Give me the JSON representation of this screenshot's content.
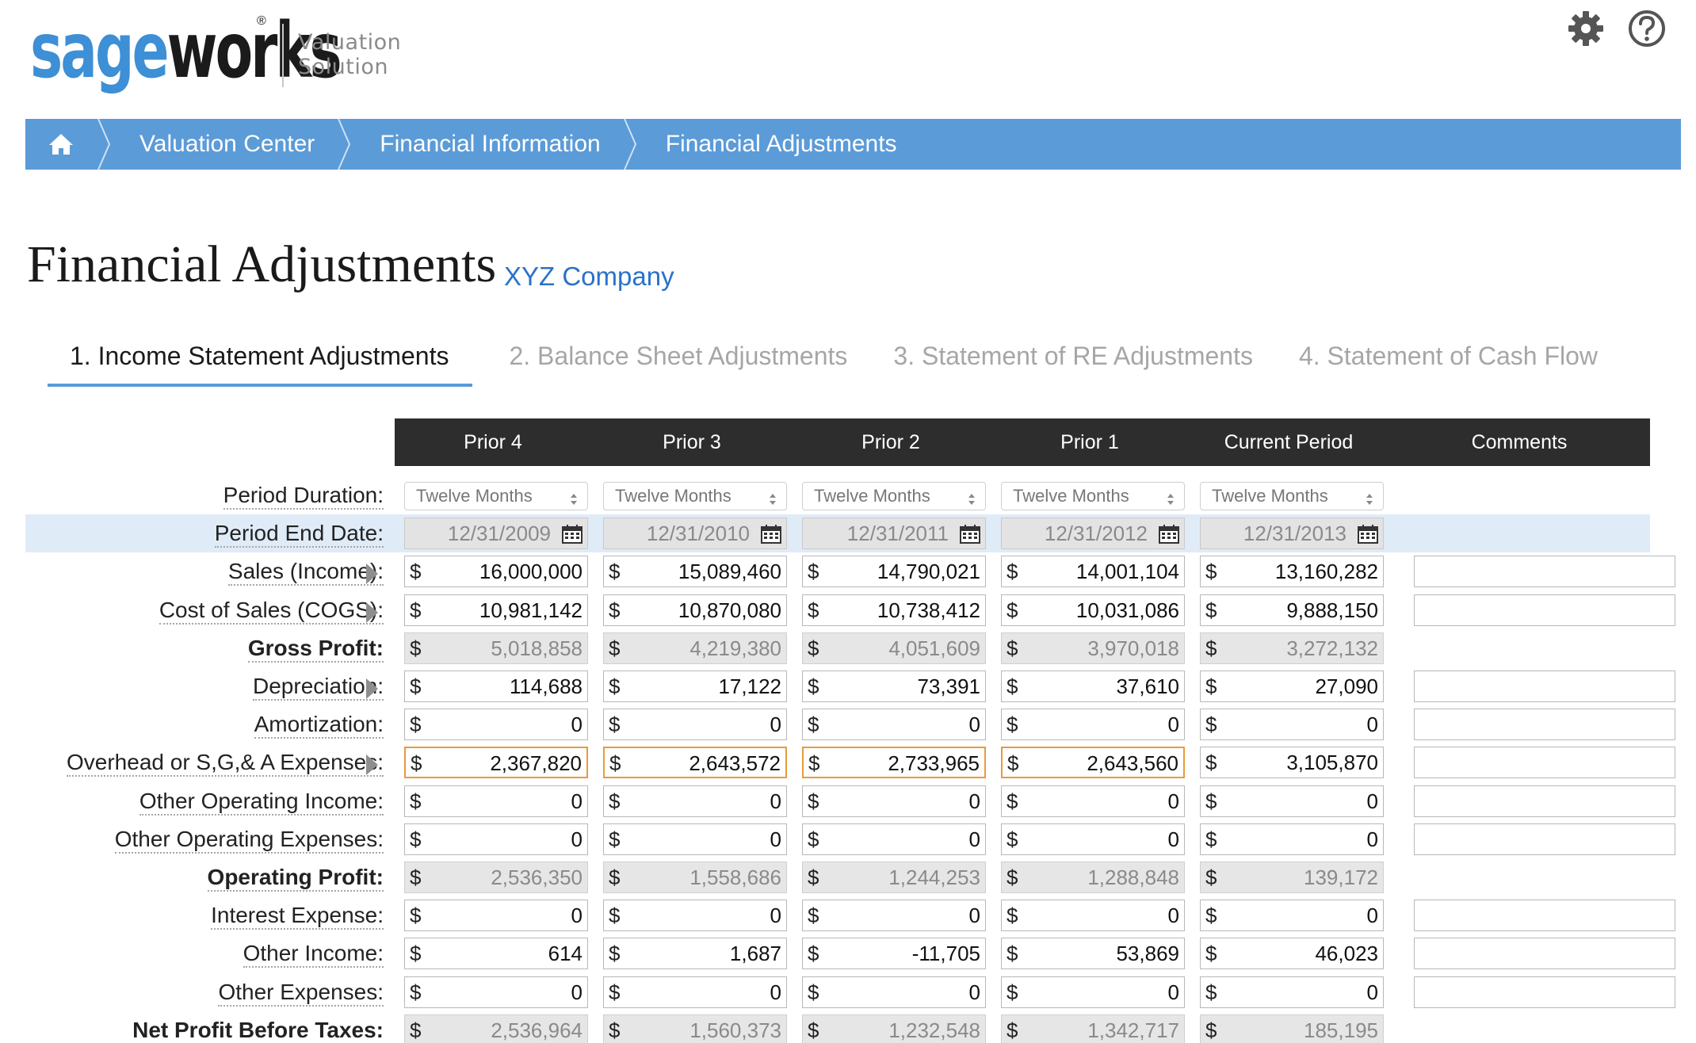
{
  "brand": {
    "sage": "sage",
    "works": "works",
    "reg": "®",
    "sub1": "Valuation",
    "sub2": "Solution"
  },
  "breadcrumb": [
    "Valuation Center",
    "Financial Information",
    "Financial Adjustments"
  ],
  "title": "Financial Adjustments",
  "company": "XYZ Company",
  "tabs": [
    {
      "label": "1. Income Statement Adjustments",
      "active": true
    },
    {
      "label": "2. Balance Sheet Adjustments",
      "active": false
    },
    {
      "label": "3. Statement of RE Adjustments",
      "active": false
    },
    {
      "label": "4. Statement of Cash Flow",
      "active": false
    }
  ],
  "columns": [
    "Prior 4",
    "Prior 3",
    "Prior 2",
    "Prior 1",
    "Current Period",
    "Comments"
  ],
  "currency_symbol": "$",
  "period_duration": {
    "label": "Period Duration:",
    "values": [
      "Twelve Months",
      "Twelve Months",
      "Twelve Months",
      "Twelve Months",
      "Twelve Months"
    ]
  },
  "period_end": {
    "label": "Period End Date:",
    "values": [
      "12/31/2009",
      "12/31/2010",
      "12/31/2011",
      "12/31/2012",
      "12/31/2013"
    ]
  },
  "rows": [
    {
      "label": "Sales (Income):",
      "bold": false,
      "expand": true,
      "readonly": false,
      "values": [
        "16,000,000",
        "15,089,460",
        "14,790,021",
        "14,001,104",
        "13,160,282"
      ]
    },
    {
      "label": "Cost of Sales (COGS):",
      "bold": false,
      "expand": true,
      "readonly": false,
      "values": [
        "10,981,142",
        "10,870,080",
        "10,738,412",
        "10,031,086",
        "9,888,150"
      ]
    },
    {
      "label": "Gross Profit:",
      "bold": true,
      "expand": false,
      "readonly": true,
      "values": [
        "5,018,858",
        "4,219,380",
        "4,051,609",
        "3,970,018",
        "3,272,132"
      ]
    },
    {
      "label": "Depreciation:",
      "bold": false,
      "expand": true,
      "readonly": false,
      "values": [
        "114,688",
        "17,122",
        "73,391",
        "37,610",
        "27,090"
      ]
    },
    {
      "label": "Amortization:",
      "bold": false,
      "expand": false,
      "readonly": false,
      "values": [
        "0",
        "0",
        "0",
        "0",
        "0"
      ]
    },
    {
      "label": "Overhead or S,G,& A Expenses:",
      "bold": false,
      "expand": true,
      "readonly": false,
      "highlight": true,
      "values": [
        "2,367,820",
        "2,643,572",
        "2,733,965",
        "2,643,560",
        "3,105,870"
      ]
    },
    {
      "label": "Other Operating Income:",
      "bold": false,
      "expand": false,
      "readonly": false,
      "values": [
        "0",
        "0",
        "0",
        "0",
        "0"
      ]
    },
    {
      "label": "Other Operating Expenses:",
      "bold": false,
      "expand": false,
      "readonly": false,
      "values": [
        "0",
        "0",
        "0",
        "0",
        "0"
      ]
    },
    {
      "label": "Operating Profit:",
      "bold": true,
      "expand": false,
      "readonly": true,
      "values": [
        "2,536,350",
        "1,558,686",
        "1,244,253",
        "1,288,848",
        "139,172"
      ]
    },
    {
      "label": "Interest Expense:",
      "bold": false,
      "expand": false,
      "readonly": false,
      "values": [
        "0",
        "0",
        "0",
        "0",
        "0"
      ]
    },
    {
      "label": "Other Income:",
      "bold": false,
      "expand": false,
      "readonly": false,
      "values": [
        "614",
        "1,687",
        "-11,705",
        "53,869",
        "46,023"
      ]
    },
    {
      "label": "Other Expenses:",
      "bold": false,
      "expand": false,
      "readonly": false,
      "values": [
        "0",
        "0",
        "0",
        "0",
        "0"
      ]
    },
    {
      "label": "Net Profit Before Taxes:",
      "bold": true,
      "expand": false,
      "readonly": true,
      "values": [
        "2,536,964",
        "1,560,373",
        "1,232,548",
        "1,342,717",
        "185,195"
      ]
    }
  ],
  "colors": {
    "accent": "#5b9bd8",
    "header_bg": "#2d2d2d",
    "focus": "#e89a3c",
    "link": "#2a72c9",
    "row_highlight": "#e0ebf8"
  }
}
